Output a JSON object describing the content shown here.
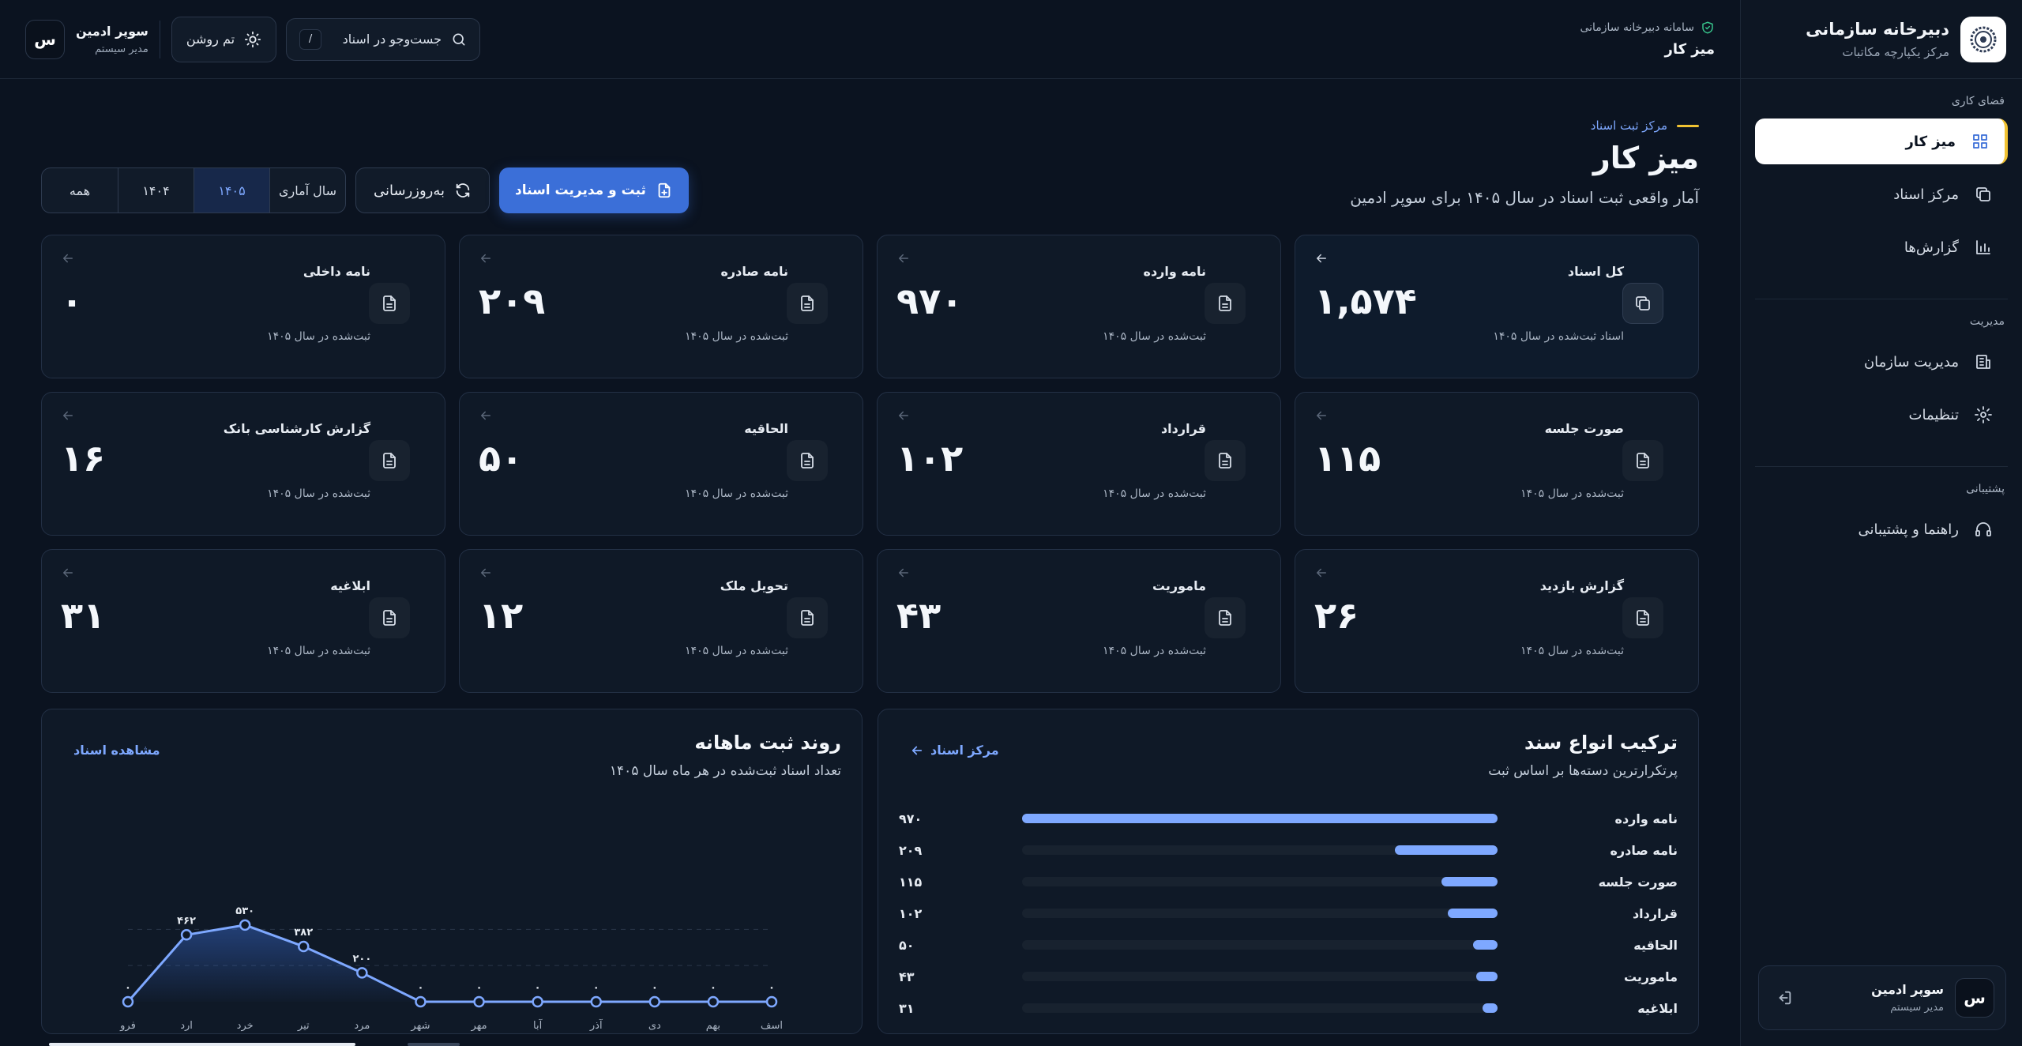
{
  "brand": {
    "title": "دبیرخانه سازمانی",
    "subtitle": "مرکز یکپارچه مکاتبات"
  },
  "sidebar": {
    "sections": [
      {
        "heading": "فضای کاری",
        "items": [
          {
            "label": "میز کار",
            "icon": "grid-icon",
            "active": true
          },
          {
            "label": "مرکز اسناد",
            "icon": "copy-icon",
            "active": false
          },
          {
            "label": "گزارش‌ها",
            "icon": "bar-chart-icon",
            "active": false
          }
        ]
      },
      {
        "heading": "مدیریت",
        "items": [
          {
            "label": "مدیریت سازمان",
            "icon": "building-icon",
            "active": false
          },
          {
            "label": "تنظیمات",
            "icon": "gear-icon",
            "active": false
          }
        ]
      },
      {
        "heading": "پشتیبانی",
        "items": [
          {
            "label": "راهنما و پشتیبانی",
            "icon": "headset-icon",
            "active": false
          }
        ]
      }
    ],
    "user": {
      "avatar": "س",
      "name": "سوپر ادمین",
      "role": "مدیر سیستم"
    }
  },
  "topbar": {
    "system_label": "سامانه دبیرخانه سازمانی",
    "title": "میز کار",
    "search_placeholder": "جست‌وجو در اسناد",
    "search_shortcut": "/",
    "theme_label": "تم روشن",
    "user": {
      "avatar": "س",
      "name": "سوپر ادمین",
      "role": "مدیر سیستم"
    }
  },
  "header": {
    "eyebrow": "مرکز ثبت اسناد",
    "title": "میز کار",
    "subtitle": "آمار واقعی ثبت اسناد در سال ۱۴۰۵ برای سوپر ادمین",
    "year_filter": {
      "label": "سال آماری",
      "options": [
        "۱۴۰۵",
        "۱۴۰۴",
        "همه"
      ],
      "selected": "۱۴۰۵"
    },
    "refresh_label": "به‌روزرسانی",
    "primary_label": "ثبت و مدیریت اسناد"
  },
  "stats": [
    {
      "label": "کل اسناد",
      "value": "۱,۵۷۴",
      "foot": "اسناد ثبت‌شده در سال ۱۴۰۵",
      "featured": true
    },
    {
      "label": "نامه وارده",
      "value": "۹۷۰",
      "foot": "ثبت‌شده در سال ۱۴۰۵",
      "featured": false
    },
    {
      "label": "نامه صادره",
      "value": "۲۰۹",
      "foot": "ثبت‌شده در سال ۱۴۰۵",
      "featured": false
    },
    {
      "label": "نامه داخلی",
      "value": "۰",
      "foot": "ثبت‌شده در سال ۱۴۰۵",
      "featured": false
    },
    {
      "label": "صورت جلسه",
      "value": "۱۱۵",
      "foot": "ثبت‌شده در سال ۱۴۰۵",
      "featured": false
    },
    {
      "label": "قرارداد",
      "value": "۱۰۲",
      "foot": "ثبت‌شده در سال ۱۴۰۵",
      "featured": false
    },
    {
      "label": "الحاقیه",
      "value": "۵۰",
      "foot": "ثبت‌شده در سال ۱۴۰۵",
      "featured": false
    },
    {
      "label": "گزارش کارشناسی بانک",
      "value": "۱۶",
      "foot": "ثبت‌شده در سال ۱۴۰۵",
      "featured": false
    },
    {
      "label": "گزارش بازدید",
      "value": "۲۶",
      "foot": "ثبت‌شده در سال ۱۴۰۵",
      "featured": false
    },
    {
      "label": "ماموریت",
      "value": "۴۳",
      "foot": "ثبت‌شده در سال ۱۴۰۵",
      "featured": false
    },
    {
      "label": "تحویل ملک",
      "value": "۱۲",
      "foot": "ثبت‌شده در سال ۱۴۰۵",
      "featured": false
    },
    {
      "label": "ابلاغیه",
      "value": "۳۱",
      "foot": "ثبت‌شده در سال ۱۴۰۵",
      "featured": false
    }
  ],
  "composition": {
    "title": "ترکیب انواع سند",
    "subtitle": "پرتکرارترین دسته‌ها بر اساس ثبت",
    "link": "مرکز اسناد",
    "items": [
      {
        "label": "نامه وارده",
        "value": 970,
        "display": "۹۷۰"
      },
      {
        "label": "نامه صادره",
        "value": 209,
        "display": "۲۰۹"
      },
      {
        "label": "صورت جلسه",
        "value": 115,
        "display": "۱۱۵"
      },
      {
        "label": "قرارداد",
        "value": 102,
        "display": "۱۰۲"
      },
      {
        "label": "الحاقیه",
        "value": 50,
        "display": "۵۰"
      },
      {
        "label": "ماموریت",
        "value": 43,
        "display": "۴۳"
      },
      {
        "label": "ابلاغیه",
        "value": 31,
        "display": "۳۱"
      }
    ]
  },
  "trend": {
    "title": "روند ثبت ماهانه",
    "subtitle": "تعداد اسناد ثبت‌شده در هر ماه سال ۱۴۰۵",
    "link": "مشاهده اسناد"
  },
  "chart_data": {
    "type": "area",
    "title": "روند ثبت ماهانه",
    "categories": [
      "فرو",
      "ارد",
      "خرد",
      "تیر",
      "مرد",
      "شهر",
      "مهر",
      "آبا",
      "آذر",
      "دی",
      "بهم",
      "اسف"
    ],
    "values": [
      0,
      462,
      530,
      382,
      200,
      0,
      0,
      0,
      0,
      0,
      0,
      0
    ],
    "value_labels": [
      "۰",
      "۴۶۲",
      "۵۳۰",
      "۳۸۲",
      "۲۰۰",
      "۰",
      "۰",
      "۰",
      "۰",
      "۰",
      "۰",
      "۰"
    ],
    "ylim": [
      0,
      600
    ],
    "grid": true,
    "colors": {
      "line": "#7ea8ff",
      "fill": "#3b6fd8"
    }
  }
}
